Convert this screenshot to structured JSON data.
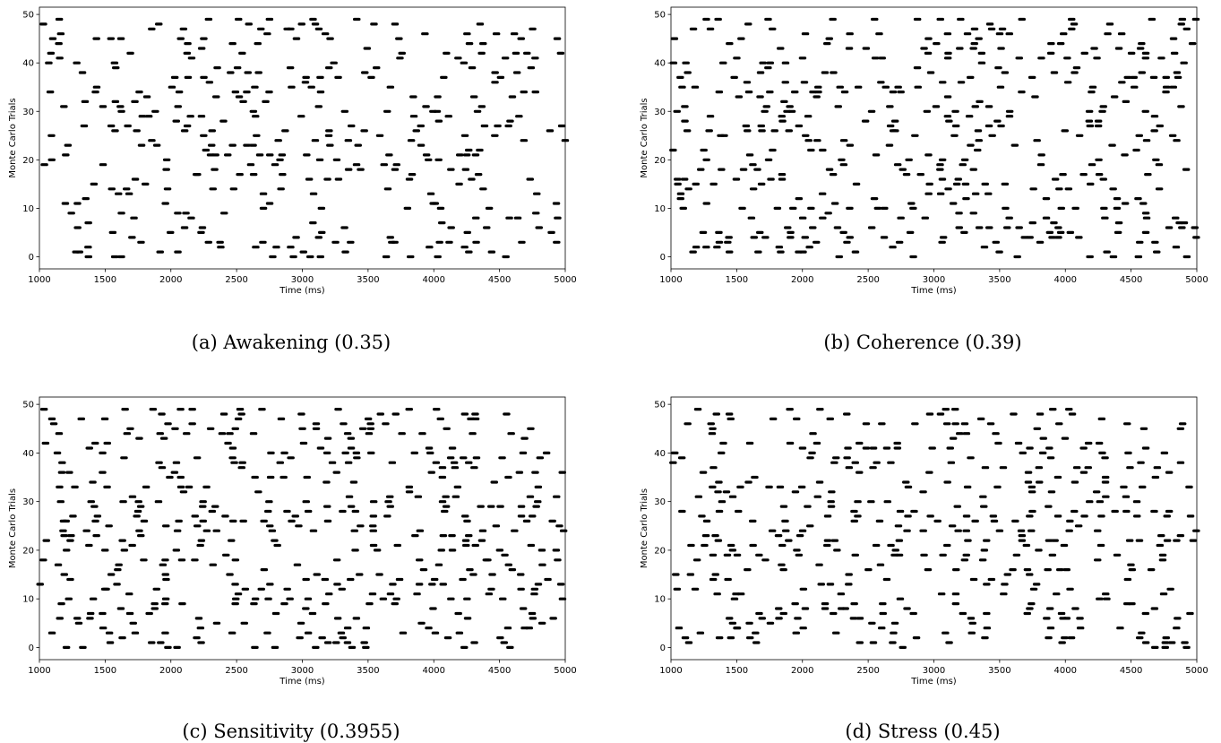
{
  "chart_data": [
    {
      "type": "scatter",
      "caption": "(a) Awakening (0.35)",
      "xlabel": "Time (ms)",
      "ylabel": "Monte Carlo Trials",
      "xlim": [
        1000,
        5000
      ],
      "ylim": [
        -2.5,
        51.5
      ],
      "xticks": [
        "1000",
        "1500",
        "2000",
        "2500",
        "3000",
        "3500",
        "4000",
        "4500",
        "5000"
      ],
      "yticks": [
        "0",
        "10",
        "20",
        "30",
        "40",
        "50"
      ],
      "grid": false,
      "marker": "horizontal dash",
      "marker_color": "#000000",
      "seed": 11,
      "events_per_trial": 7.4
    },
    {
      "type": "scatter",
      "caption": "(b) Coherence (0.39)",
      "xlabel": "Time (ms)",
      "ylabel": "Monte Carlo Trials",
      "xlim": [
        1000,
        5000
      ],
      "ylim": [
        -2.5,
        51.5
      ],
      "xticks": [
        "1000",
        "1500",
        "2000",
        "2500",
        "3000",
        "3500",
        "4000",
        "4500",
        "5000"
      ],
      "yticks": [
        "0",
        "10",
        "20",
        "30",
        "40",
        "50"
      ],
      "grid": false,
      "marker": "horizontal dash",
      "marker_color": "#000000",
      "seed": 23,
      "events_per_trial": 8.2
    },
    {
      "type": "scatter",
      "caption": "(c) Sensitivity (0.3955)",
      "xlabel": "Time (ms)",
      "ylabel": "Monte Carlo Trials",
      "xlim": [
        1000,
        5000
      ],
      "ylim": [
        -2.5,
        51.5
      ],
      "xticks": [
        "1000",
        "1500",
        "2000",
        "2500",
        "3000",
        "3500",
        "4000",
        "4500",
        "5000"
      ],
      "yticks": [
        "0",
        "10",
        "20",
        "30",
        "40",
        "50"
      ],
      "grid": false,
      "marker": "horizontal dash",
      "marker_color": "#000000",
      "seed": 37,
      "events_per_trial": 8.5
    },
    {
      "type": "scatter",
      "caption": "(d) Stress (0.45)",
      "xlabel": "Time (ms)",
      "ylabel": "Monte Carlo Trials",
      "xlim": [
        1000,
        5000
      ],
      "ylim": [
        -2.5,
        51.5
      ],
      "xticks": [
        "1000",
        "1500",
        "2000",
        "2500",
        "3000",
        "3500",
        "4000",
        "4500",
        "5000"
      ],
      "yticks": [
        "0",
        "10",
        "20",
        "30",
        "40",
        "50"
      ],
      "grid": false,
      "marker": "horizontal dash",
      "marker_color": "#000000",
      "seed": 51,
      "events_per_trial": 9.0
    }
  ]
}
